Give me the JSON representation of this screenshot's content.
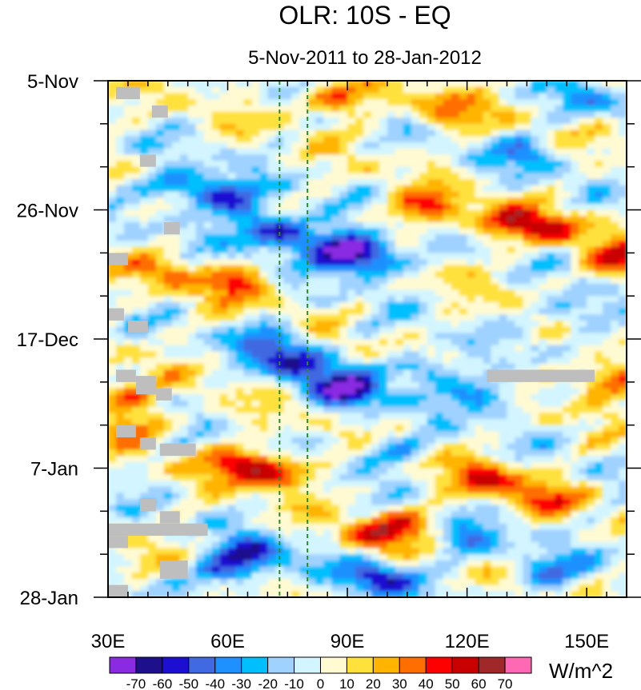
{
  "chart_data": {
    "type": "heatmap",
    "title": "OLR: 10S - EQ",
    "subtitle": "5-Nov-2011 to 28-Jan-2012",
    "x_axis": {
      "range": [
        30,
        160
      ],
      "ticks": [
        30,
        60,
        90,
        120,
        150
      ],
      "tick_labels": [
        "30E",
        "60E",
        "90E",
        "120E",
        "150E"
      ],
      "minor_step": 5
    },
    "y_axis": {
      "range_days": [
        0,
        84
      ],
      "ticks": [
        0,
        21,
        42,
        63,
        84
      ],
      "tick_labels": [
        "5-Nov",
        "26-Nov",
        "17-Dec",
        "7-Jan",
        "28-Jan"
      ],
      "minor_step": 7,
      "direction": "downward"
    },
    "reference_lines": [
      73,
      80
    ],
    "reference_line_color": "#2a8a2a",
    "missing_color": "#bebebe",
    "colorbar": {
      "units": "W/m^2",
      "levels": [
        -70,
        -60,
        -50,
        -40,
        -30,
        -20,
        -10,
        0,
        10,
        20,
        30,
        40,
        50,
        60,
        70
      ],
      "level_labels": [
        "-70",
        "-60",
        "-50",
        "-40",
        "-30",
        "-20",
        "-10",
        "0",
        "10",
        "20",
        "30",
        "40",
        "50",
        "60",
        "70"
      ],
      "colors": [
        "#8a2be2",
        "#1e0f8c",
        "#1c0fd2",
        "#4169e1",
        "#1e90ff",
        "#00bfff",
        "#a0d2ff",
        "#d2f5ff",
        "#fffad2",
        "#ffe13c",
        "#ffb400",
        "#ff6e00",
        "#ff0000",
        "#c80000",
        "#a02828",
        "#ff69b4"
      ]
    },
    "anomaly_features": [
      {
        "lon": 72,
        "day": 24.5,
        "value": -68
      },
      {
        "lon": 60,
        "day": 19.5,
        "value": -52
      },
      {
        "lon": 48,
        "day": 17,
        "value": -45
      },
      {
        "lon": 88,
        "day": 27,
        "value": -58
      },
      {
        "lon": 95,
        "day": 29,
        "value": -62
      },
      {
        "lon": 63,
        "day": 33,
        "value": 38
      },
      {
        "lon": 45,
        "day": 31,
        "value": 28
      },
      {
        "lon": 87,
        "day": 3,
        "value": 45
      },
      {
        "lon": 115,
        "day": 5,
        "value": 35
      },
      {
        "lon": 110,
        "day": 21,
        "value": 45
      },
      {
        "lon": 130,
        "day": 23,
        "value": 36
      },
      {
        "lon": 142,
        "day": 24,
        "value": 40
      },
      {
        "lon": 158,
        "day": 29,
        "value": 42
      },
      {
        "lon": 90,
        "day": 50.5,
        "value": -65
      },
      {
        "lon": 78,
        "day": 46,
        "value": -55
      },
      {
        "lon": 70,
        "day": 42,
        "value": -35
      },
      {
        "lon": 72,
        "day": 63.5,
        "value": 50
      },
      {
        "lon": 62,
        "day": 62,
        "value": 35
      },
      {
        "lon": 125,
        "day": 65,
        "value": 46
      },
      {
        "lon": 140,
        "day": 68,
        "value": 30
      },
      {
        "lon": 97,
        "day": 74,
        "value": 36
      },
      {
        "lon": 105,
        "day": 72,
        "value": 25
      },
      {
        "lon": 97,
        "day": 81,
        "value": -55
      },
      {
        "lon": 66,
        "day": 77,
        "value": -50
      },
      {
        "lon": 60,
        "day": 80,
        "value": -40
      },
      {
        "lon": 108,
        "day": 47,
        "value": -38
      },
      {
        "lon": 125,
        "day": 51,
        "value": -42
      },
      {
        "lon": 155,
        "day": 48.5,
        "value": 48
      },
      {
        "lon": 148,
        "day": 38,
        "value": -32
      },
      {
        "lon": 38,
        "day": 56,
        "value": 30
      },
      {
        "lon": 32,
        "day": 51.5,
        "value": 36
      },
      {
        "lon": 100,
        "day": 60,
        "value": -30
      },
      {
        "lon": 135,
        "day": 12,
        "value": -30
      },
      {
        "lon": 150,
        "day": 3,
        "value": -25
      },
      {
        "lon": 120,
        "day": 75,
        "value": -35
      },
      {
        "lon": 140,
        "day": 80,
        "value": -38
      }
    ],
    "missing_cells": [
      {
        "lon": [
          32,
          38
        ],
        "day": [
          1,
          3
        ]
      },
      {
        "lon": [
          41,
          45
        ],
        "day": [
          4,
          6
        ]
      },
      {
        "lon": [
          38,
          42
        ],
        "day": [
          12,
          14
        ]
      },
      {
        "lon": [
          44,
          48
        ],
        "day": [
          23,
          25
        ]
      },
      {
        "lon": [
          30,
          35
        ],
        "day": [
          28,
          30
        ]
      },
      {
        "lon": [
          30,
          34
        ],
        "day": [
          37,
          39
        ]
      },
      {
        "lon": [
          35,
          40
        ],
        "day": [
          39,
          41
        ]
      },
      {
        "lon": [
          32,
          37
        ],
        "day": [
          47,
          49
        ]
      },
      {
        "lon": [
          37,
          42
        ],
        "day": [
          48,
          51
        ]
      },
      {
        "lon": [
          42,
          46
        ],
        "day": [
          50,
          52
        ]
      },
      {
        "lon": [
          32,
          37
        ],
        "day": [
          56,
          58
        ]
      },
      {
        "lon": [
          38,
          42
        ],
        "day": [
          58,
          60
        ]
      },
      {
        "lon": [
          43,
          52
        ],
        "day": [
          59,
          61
        ]
      },
      {
        "lon": [
          38,
          42
        ],
        "day": [
          68,
          70
        ]
      },
      {
        "lon": [
          43,
          48
        ],
        "day": [
          70,
          72
        ]
      },
      {
        "lon": [
          30,
          55
        ],
        "day": [
          72,
          74
        ]
      },
      {
        "lon": [
          30,
          35
        ],
        "day": [
          74,
          76
        ]
      },
      {
        "lon": [
          43,
          50
        ],
        "day": [
          78,
          81
        ]
      },
      {
        "lon": [
          30,
          35
        ],
        "day": [
          82,
          84
        ]
      },
      {
        "lon": [
          125,
          152
        ],
        "day": [
          47,
          49
        ]
      }
    ]
  }
}
